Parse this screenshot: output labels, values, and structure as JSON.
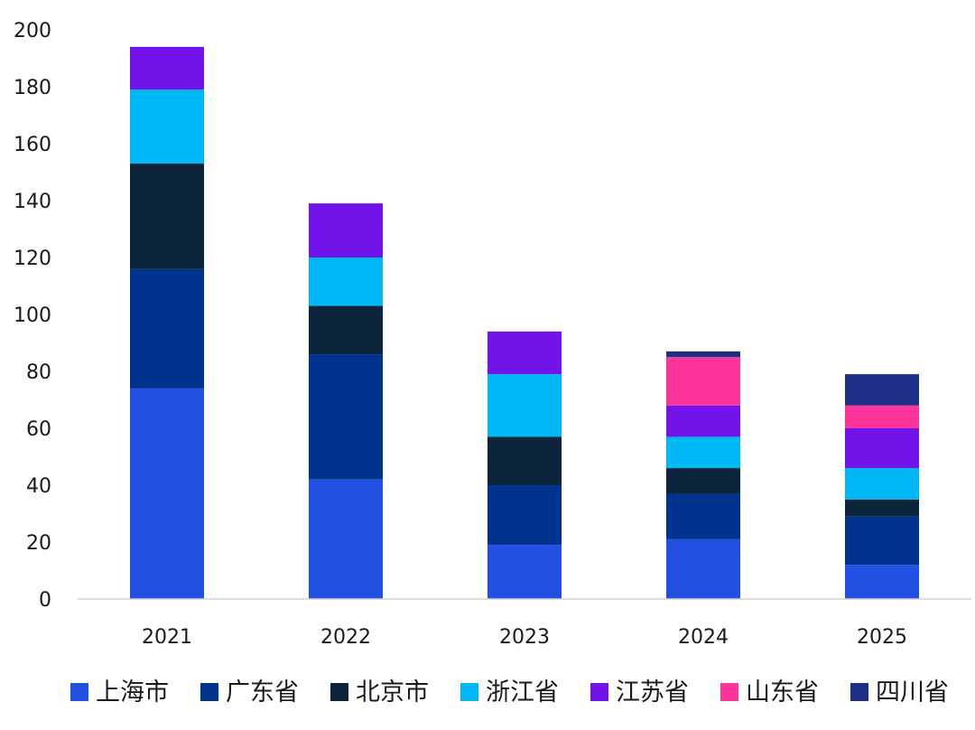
{
  "chart_data": {
    "type": "bar",
    "stacked": true,
    "title": "",
    "xlabel": "",
    "ylabel": "",
    "ylim": [
      0,
      200
    ],
    "yticks": [
      "0",
      "20",
      "40",
      "60",
      "80",
      "100",
      "120",
      "140",
      "160",
      "180",
      "200"
    ],
    "grid": false,
    "legend_position": "bottom",
    "categories": [
      "2021",
      "2022",
      "2023",
      "2024",
      "2025"
    ],
    "series": [
      {
        "name": "上海市",
        "color": "#2250e3",
        "values": [
          74,
          42,
          19,
          21,
          12
        ]
      },
      {
        "name": "广东省",
        "color": "#00338d",
        "values": [
          42,
          44,
          21,
          16,
          17
        ]
      },
      {
        "name": "北京市",
        "color": "#0c233c",
        "values": [
          37,
          17,
          17,
          9,
          6
        ]
      },
      {
        "name": "浙江省",
        "color": "#00b8f5",
        "values": [
          26,
          17,
          22,
          11,
          11
        ]
      },
      {
        "name": "江苏省",
        "color": "#7213ea",
        "values": [
          15,
          19,
          15,
          11,
          14
        ]
      },
      {
        "name": "山东省",
        "color": "#fd349c",
        "values": [
          0,
          0,
          0,
          17,
          8
        ]
      },
      {
        "name": "四川省",
        "color": "#1e2f87",
        "values": [
          0,
          0,
          0,
          2,
          11
        ]
      }
    ]
  }
}
